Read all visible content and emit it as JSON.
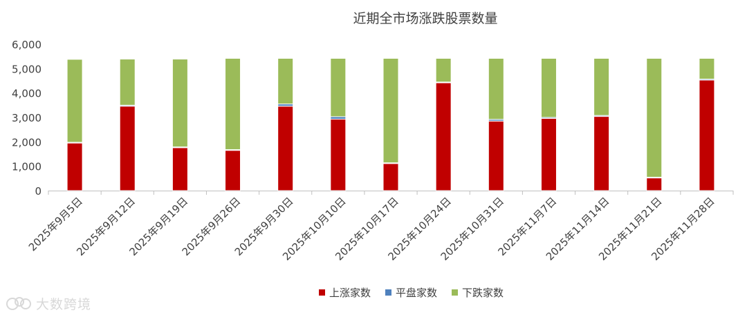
{
  "chart_data": {
    "type": "bar",
    "stacked": true,
    "title": "近期全市场涨跌股票数量",
    "xlabel": "",
    "ylabel": "",
    "ylim": [
      0,
      6000
    ],
    "yticks": [
      0,
      1000,
      2000,
      3000,
      4000,
      5000,
      6000
    ],
    "ytick_labels": [
      "0",
      "1,000",
      "2,000",
      "3,000",
      "4,000",
      "5,000",
      "6,000"
    ],
    "grid": false,
    "legend_position": "bottom-center",
    "categories": [
      "2025年9月5日",
      "2025年9月12日",
      "2025年9月19日",
      "2025年9月26日",
      "2025年9月30日",
      "2025年10月10日",
      "2025年10月17日",
      "2025年10月24日",
      "2025年10月31日",
      "2025年11月7日",
      "2025年11月14日",
      "2025年11月21日",
      "2025年11月28日"
    ],
    "series": [
      {
        "name": "上涨家数",
        "color": "#C00000",
        "values": [
          1950,
          3460,
          1760,
          1650,
          3460,
          2930,
          1110,
          4420,
          2850,
          2960,
          3040,
          520,
          4530
        ]
      },
      {
        "name": "平盘家数",
        "color": "#4F81BD",
        "values": [
          30,
          40,
          30,
          30,
          90,
          100,
          30,
          30,
          70,
          40,
          40,
          30,
          40
        ]
      },
      {
        "name": "下跌家数",
        "color": "#9BBB59",
        "values": [
          3400,
          1890,
          3600,
          3740,
          1870,
          2390,
          4280,
          970,
          2500,
          2420,
          2340,
          4870,
          850
        ]
      }
    ]
  },
  "watermark": {
    "text": "大数跨境",
    "logo_icon": "cloud-logo-icon"
  }
}
